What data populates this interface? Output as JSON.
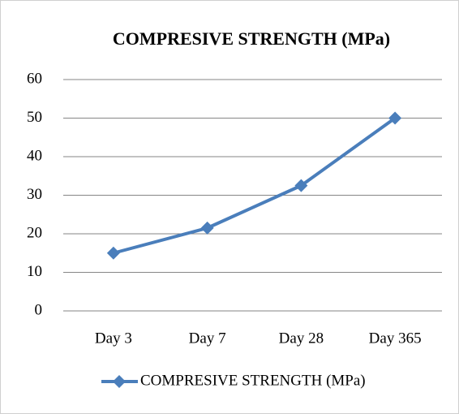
{
  "chart_data": {
    "type": "line",
    "title": "COMPRESIVE STRENGTH (MPa)",
    "categories": [
      "Day 3",
      "Day 7",
      "Day 28",
      "Day 365"
    ],
    "series": [
      {
        "name": "COMPRESIVE STRENGTH (MPa)",
        "color": "#4a7ebb",
        "values": [
          15,
          21.5,
          32.5,
          50
        ]
      }
    ],
    "ylim": [
      0,
      60
    ],
    "yticks": [
      0,
      10,
      20,
      30,
      40,
      50,
      60
    ],
    "grid": true,
    "legend": "bottom"
  }
}
